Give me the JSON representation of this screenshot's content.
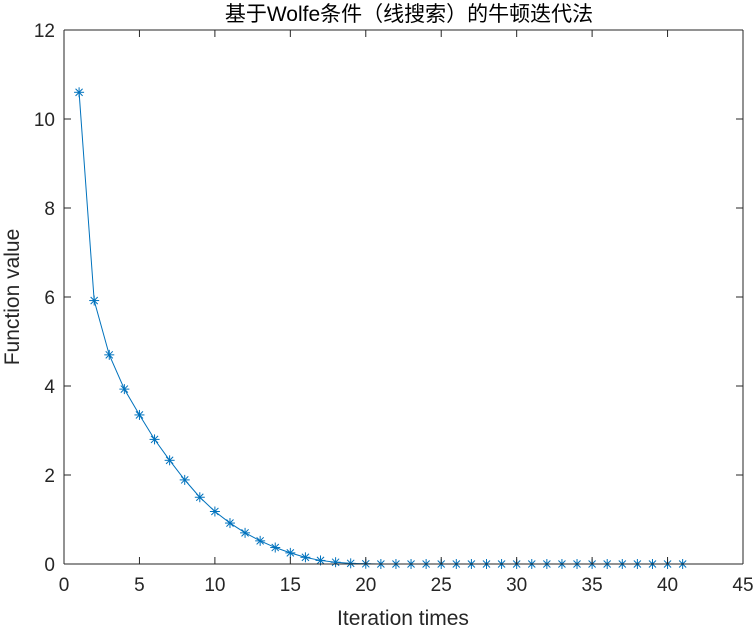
{
  "chart_data": {
    "type": "line",
    "title": "基于Wolfe条件（线搜索）的牛顿迭代法",
    "xlabel": "Iteration times",
    "ylabel": "Function value",
    "xlim": [
      0,
      45
    ],
    "ylim": [
      0,
      12
    ],
    "xticks": [
      0,
      5,
      10,
      15,
      20,
      25,
      30,
      35,
      40,
      45
    ],
    "yticks": [
      0,
      2,
      4,
      6,
      8,
      10,
      12
    ],
    "grid": false,
    "box": true,
    "marker": "asterisk",
    "series": [
      {
        "color": "#0072BD",
        "x": [
          1,
          2,
          3,
          4,
          5,
          6,
          7,
          8,
          9,
          10,
          11,
          12,
          13,
          14,
          15,
          16,
          17,
          18,
          19,
          20,
          21,
          22,
          23,
          24,
          25,
          26,
          27,
          28,
          29,
          30,
          31,
          32,
          33,
          34,
          35,
          36,
          37,
          38,
          39,
          40,
          41
        ],
        "y": [
          10.6,
          5.92,
          4.7,
          3.93,
          3.35,
          2.8,
          2.33,
          1.89,
          1.5,
          1.18,
          0.92,
          0.7,
          0.52,
          0.37,
          0.25,
          0.15,
          0.08,
          0.04,
          0.015,
          0.005,
          0,
          0,
          0,
          0,
          0,
          0,
          0,
          0,
          0,
          0,
          0,
          0,
          0,
          0,
          0,
          0,
          0,
          0,
          0,
          0,
          0
        ]
      }
    ]
  }
}
